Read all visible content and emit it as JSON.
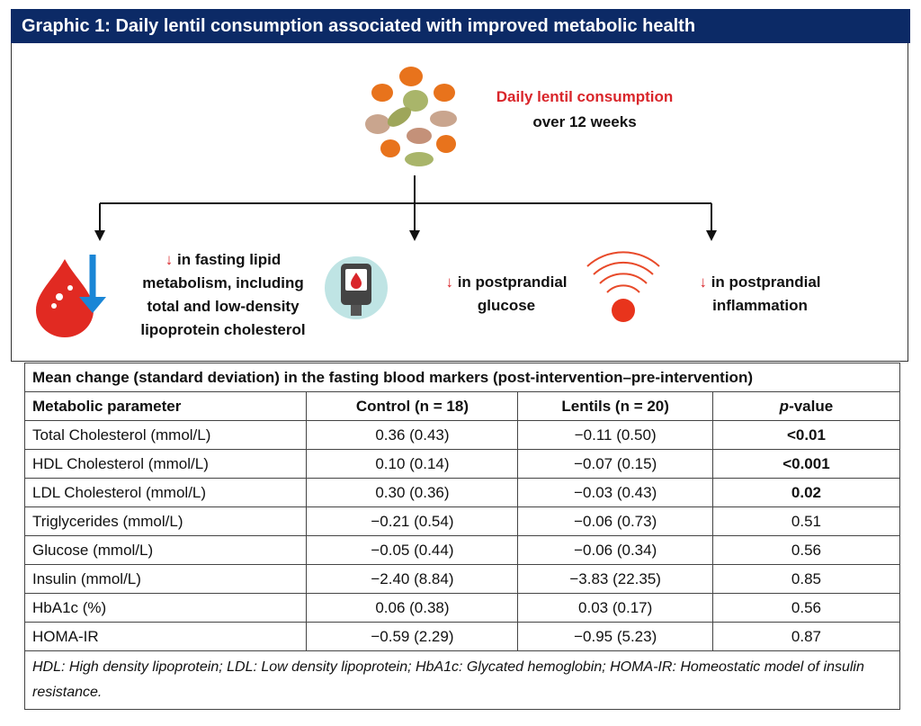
{
  "header": {
    "title": "Graphic 1: Daily lentil consumption associated with improved metabolic health"
  },
  "intervention": {
    "label": "Daily lentil consumption",
    "duration": "over 12 weeks"
  },
  "effects": [
    {
      "arrow": "↓",
      "lines": [
        "in fasting lipid",
        "metabolism, including",
        "total and low-density",
        "lipoprotein cholesterol"
      ]
    },
    {
      "arrow": "↓",
      "lines": [
        "in postprandial",
        "glucose"
      ]
    },
    {
      "arrow": "↓",
      "lines": [
        "in postprandial",
        "inflammation"
      ]
    }
  ],
  "table": {
    "caption": "Mean change (standard deviation) in the fasting blood markers (post-intervention–pre-intervention)",
    "header": [
      "Metabolic parameter",
      "Control (n = 18)",
      "Lentils (n = 20)",
      {
        "italic": "p",
        "rest": "-value"
      }
    ],
    "rows": [
      {
        "cells": [
          "Total Cholesterol (mmol/L)",
          "0.36 (0.43)",
          "−0.11 (0.50)",
          "<0.01"
        ],
        "bold_p": true
      },
      {
        "cells": [
          "HDL Cholesterol (mmol/L)",
          "0.10 (0.14)",
          "−0.07 (0.15)",
          "<0.001"
        ],
        "bold_p": true
      },
      {
        "cells": [
          "LDL Cholesterol (mmol/L)",
          "0.30 (0.36)",
          "−0.03 (0.43)",
          "0.02"
        ],
        "bold_p": true
      },
      {
        "cells": [
          "Triglycerides (mmol/L)",
          "−0.21 (0.54)",
          "−0.06 (0.73)",
          "0.51"
        ],
        "bold_p": false
      },
      {
        "cells": [
          "Glucose (mmol/L)",
          "−0.05 (0.44)",
          "−0.06 (0.34)",
          "0.56"
        ],
        "bold_p": false
      },
      {
        "cells": [
          "Insulin (mmol/L)",
          "−2.40 (8.84)",
          "−3.83 (22.35)",
          "0.85"
        ],
        "bold_p": false
      },
      {
        "cells": [
          "HbA1c (%)",
          "0.06 (0.38)",
          "0.03 (0.17)",
          "0.56"
        ],
        "bold_p": false
      },
      {
        "cells": [
          "HOMA-IR",
          "−0.59 (2.29)",
          "−0.95 (5.23)",
          "0.87"
        ],
        "bold_p": false
      }
    ],
    "footnote": "HDL: High density lipoprotein; LDL: Low density lipoprotein; HbA1c: Glycated hemoglobin; HOMA-IR: Homeostatic model of insulin resistance."
  }
}
